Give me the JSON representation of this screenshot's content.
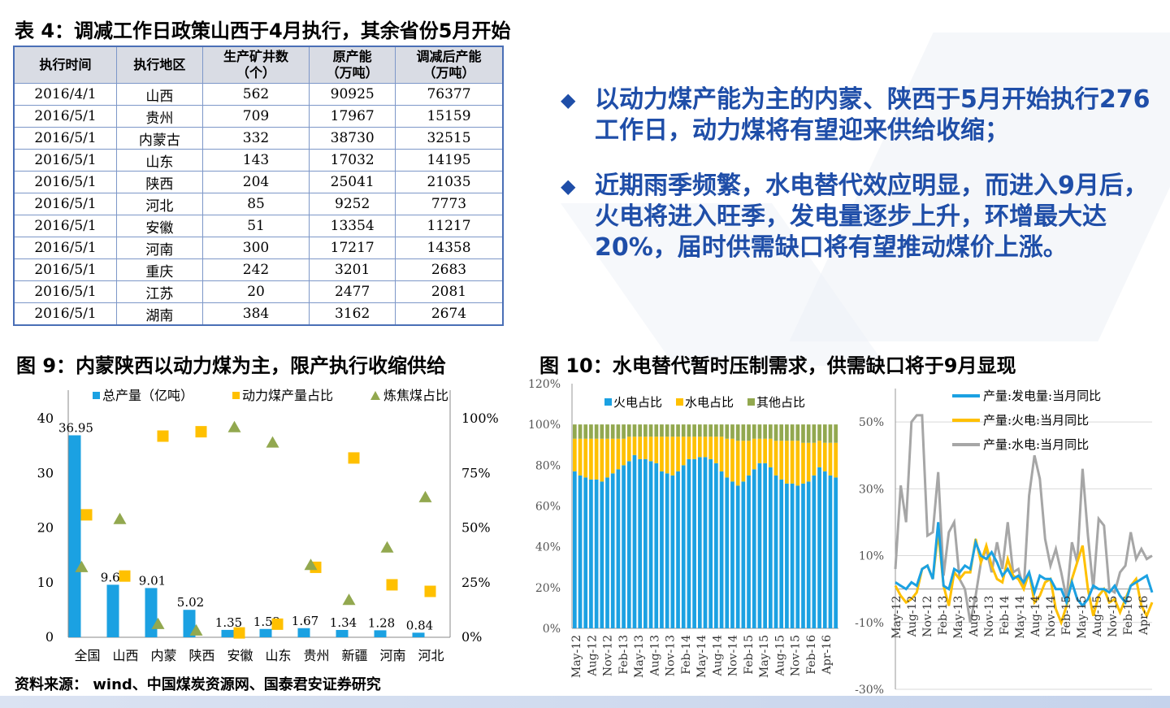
{
  "table": {
    "title": "表 4：调减工作日政策山西于4月执行，其余省份5月开始",
    "headers": [
      "执行时间",
      "执行地区",
      "生产矿井数\n（个）",
      "原产能\n（万吨）",
      "调减后产能\n（万吨）"
    ],
    "rows": [
      [
        "2016/4/1",
        "山西",
        "562",
        "90925",
        "76377"
      ],
      [
        "2016/5/1",
        "贵州",
        "709",
        "17967",
        "15159"
      ],
      [
        "2016/5/1",
        "内蒙古",
        "332",
        "38730",
        "32515"
      ],
      [
        "2016/5/1",
        "山东",
        "143",
        "17032",
        "14195"
      ],
      [
        "2016/5/1",
        "陕西",
        "204",
        "25041",
        "21035"
      ],
      [
        "2016/5/1",
        "河北",
        "85",
        "9252",
        "7773"
      ],
      [
        "2016/5/1",
        "安徽",
        "51",
        "13354",
        "11217"
      ],
      [
        "2016/5/1",
        "河南",
        "300",
        "17217",
        "14358"
      ],
      [
        "2016/5/1",
        "重庆",
        "242",
        "3201",
        "2683"
      ],
      [
        "2016/5/1",
        "江苏",
        "20",
        "2477",
        "2081"
      ],
      [
        "2016/5/1",
        "湖南",
        "384",
        "3162",
        "2674"
      ]
    ]
  },
  "bullets": [
    "以动力煤产能为主的内蒙、陕西于5月开始执行276工作日，动力煤将有望迎来供给收缩；",
    " 近期雨季频繁，水电替代效应明显，而进入9月后，火电将进入旺季，发电量逐步上升，环增最大达20%，届时供需缺口将有望推动煤价上涨。"
  ],
  "bullet_marker": "◆",
  "fig9_title": "图 9：内蒙陕西以动力煤为主，限产执行收缩供给",
  "fig10_title": "图 10：水电替代暂时压制需求，供需缺口将于9月显现",
  "source": "资料来源： wind、中国煤炭资源网、国泰君安证券研究",
  "colors": {
    "blue": "#1ba1e2",
    "orange": "#ffc000",
    "green": "#92a84f",
    "gray": "#a6a6a6",
    "text_blue": "#1f4ea8",
    "grid": "#d9d9d9"
  },
  "chart_data": [
    {
      "type": "bar",
      "title": "图 9：内蒙陕西以动力煤为主，限产执行收缩供给",
      "categories": [
        "全国",
        "山西",
        "内蒙",
        "陕西",
        "安徽",
        "山东",
        "贵州",
        "新疆",
        "河南",
        "河北"
      ],
      "ylim": [
        0,
        40
      ],
      "yticks": [
        "0",
        "10",
        "20",
        "30",
        "40"
      ],
      "y2lim": [
        0,
        100
      ],
      "y2ticks": [
        "0%",
        "25%",
        "50%",
        "75%",
        "100%"
      ],
      "series": [
        {
          "name": "总产量（亿吨）",
          "kind": "bar",
          "axis": "left",
          "values": [
            36.95,
            9.61,
            9.01,
            5.02,
            1.35,
            1.52,
            1.67,
            1.34,
            1.28,
            0.84
          ],
          "labels": [
            "36.95",
            "9.61",
            "9.01",
            "5.02",
            "1.35",
            "1.52",
            "1.67",
            "1.34",
            "1.28",
            "0.84"
          ]
        },
        {
          "name": "动力煤产量占比",
          "kind": "marker-square",
          "axis": "right",
          "values": [
            56,
            28,
            92,
            94,
            2,
            6,
            32,
            82,
            24,
            21
          ]
        },
        {
          "name": "炼焦煤占比",
          "kind": "marker-triangle",
          "axis": "right",
          "values": [
            32,
            54,
            6,
            3,
            96,
            89,
            33,
            17,
            41,
            64
          ]
        }
      ]
    },
    {
      "type": "bar",
      "stacked": true,
      "title": "火电/水电/其他占比",
      "x_tick_labels": [
        "May-12",
        "Aug-12",
        "Nov-12",
        "Feb-13",
        "May-13",
        "Aug-13",
        "Nov-13",
        "Feb-14",
        "May-14",
        "Aug-14",
        "Nov-14",
        "Feb-15",
        "May-15",
        "Aug-15",
        "Nov-15",
        "Feb-16",
        "Apr-16"
      ],
      "ylim": [
        0,
        120
      ],
      "yticks": [
        "0%",
        "20%",
        "40%",
        "60%",
        "80%",
        "100%",
        "120%"
      ],
      "series": [
        {
          "name": "火电占比",
          "values": [
            77,
            75,
            74,
            73,
            73,
            72,
            74,
            76,
            78,
            80,
            82,
            85,
            83,
            83,
            82,
            81,
            77,
            76,
            75,
            77,
            80,
            83,
            83,
            84,
            84,
            83,
            81,
            77,
            74,
            72,
            70,
            72,
            75,
            78,
            81,
            81,
            79,
            75,
            73,
            71,
            71,
            70,
            71,
            72,
            75,
            79,
            77,
            75,
            74
          ]
        },
        {
          "name": "水电占比",
          "values": [
            16,
            18,
            19,
            20,
            20,
            21,
            19,
            17,
            15,
            13,
            12,
            9,
            11,
            11,
            12,
            13,
            17,
            18,
            19,
            17,
            14,
            11,
            11,
            10,
            10,
            11,
            13,
            17,
            19,
            21,
            22,
            20,
            17,
            15,
            12,
            12,
            14,
            17,
            19,
            21,
            21,
            22,
            20,
            19,
            16,
            13,
            14,
            16,
            17
          ]
        },
        {
          "name": "其他占比",
          "values": [
            7,
            7,
            7,
            7,
            7,
            7,
            7,
            7,
            7,
            7,
            6,
            6,
            6,
            6,
            6,
            6,
            6,
            6,
            6,
            6,
            6,
            6,
            6,
            6,
            6,
            6,
            6,
            6,
            7,
            7,
            8,
            8,
            8,
            7,
            7,
            7,
            7,
            8,
            8,
            8,
            8,
            8,
            9,
            9,
            9,
            8,
            9,
            9,
            9
          ]
        }
      ]
    },
    {
      "type": "line",
      "title": "产量当月同比",
      "x_tick_labels": [
        "May-12",
        "Aug-12",
        "Nov-12",
        "Feb-13",
        "May-13",
        "Aug-13",
        "Nov-13",
        "Feb-14",
        "May-14",
        "Aug-14",
        "Nov-14",
        "Feb-15",
        "May-15",
        "Aug-15",
        "Nov-15",
        "Feb-16",
        "Apr-16"
      ],
      "ylim": [
        -30,
        60
      ],
      "yticks": [
        "-30%",
        "-10%",
        "10%",
        "30%",
        "50%"
      ],
      "series": [
        {
          "name": "产量:发电量:当月同比",
          "values": [
            2,
            1,
            0,
            2,
            1,
            6,
            7,
            3,
            20,
            1,
            0,
            6,
            5,
            7,
            6,
            14,
            10,
            9,
            11,
            8,
            4,
            6,
            3,
            4,
            2,
            5,
            -1,
            4,
            3,
            3,
            0,
            0,
            -4,
            2,
            -3,
            -5,
            -3,
            1,
            0,
            0,
            -1,
            1,
            -2,
            -4,
            1,
            2,
            3,
            4,
            -1
          ]
        },
        {
          "name": "产量:火电:当月同比",
          "values": [
            1,
            -2,
            -4,
            -3,
            -1,
            6,
            7,
            3,
            17,
            1,
            -5,
            5,
            3,
            5,
            5,
            15,
            8,
            13,
            7,
            3,
            2,
            9,
            4,
            3,
            0,
            5,
            -4,
            -2,
            2,
            3,
            -6,
            -10,
            -5,
            3,
            8,
            13,
            0,
            -8,
            -2,
            0,
            -4,
            -3,
            -7,
            -3,
            1,
            3,
            -5,
            -8,
            -4
          ]
        },
        {
          "name": "产量:水电:当月同比",
          "values": [
            6,
            31,
            20,
            50,
            52,
            52,
            16,
            17,
            35,
            4,
            17,
            20,
            3,
            0,
            -10,
            -2,
            8,
            12,
            5,
            14,
            6,
            20,
            5,
            6,
            0,
            28,
            40,
            33,
            15,
            7,
            12,
            5,
            -3,
            14,
            8,
            36,
            16,
            0,
            21,
            19,
            0,
            -1,
            5,
            7,
            17,
            9,
            12,
            9,
            10
          ]
        }
      ]
    }
  ]
}
